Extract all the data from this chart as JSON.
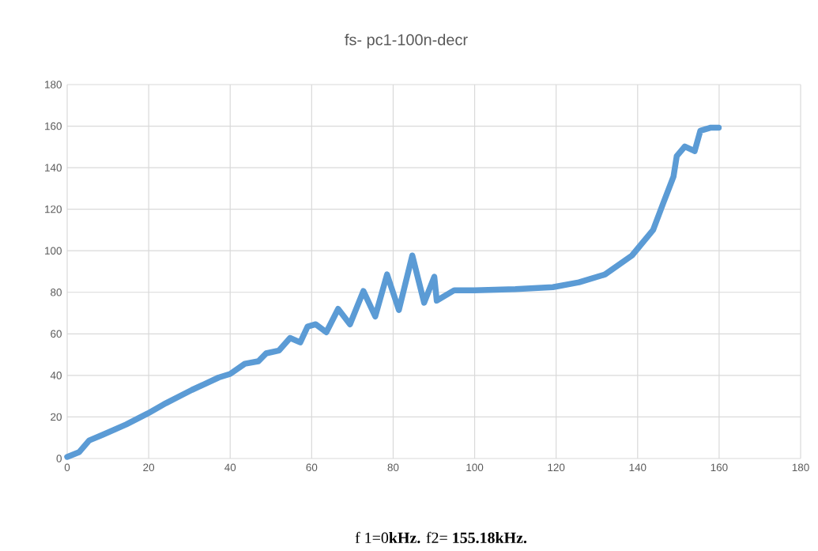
{
  "chart_data": {
    "type": "line",
    "title": "fs- pc1-100n-decr",
    "annotations": [
      "f 1=0**kHz.**    f2= **155.18kHz.**"
    ],
    "x": [
      0,
      2.9,
      5.4,
      8.7,
      14.5,
      19.8,
      24.2,
      30.6,
      37.2,
      40,
      43.6,
      46.9,
      48.8,
      52,
      54.7,
      57.2,
      59,
      61,
      63.6,
      66.5,
      69.4,
      72.7,
      75.6,
      78.5,
      81.4,
      84.7,
      87.6,
      90.1,
      90.7,
      95,
      100,
      110,
      119.2,
      125.6,
      132,
      138.6,
      143.8,
      146.3,
      148.8,
      149.6,
      151.6,
      154,
      155.4,
      158,
      159.9
    ],
    "series": [
      {
        "color": "#5b9bd5",
        "values": [
          0.8,
          3,
          8.7,
          11.4,
          16.4,
          21.7,
          26.6,
          33,
          39,
          40.7,
          45.6,
          46.8,
          50.6,
          52,
          58,
          55.9,
          63.5,
          64.6,
          60.8,
          72,
          64.6,
          80.6,
          68.4,
          88.6,
          71.5,
          97.7,
          75,
          87.5,
          76,
          81,
          81,
          81.5,
          82.5,
          84.8,
          88.6,
          97.7,
          110,
          123,
          135.7,
          145.6,
          150.2,
          148,
          157.8,
          159.3,
          159.3
        ]
      }
    ],
    "xlim": [
      0,
      180
    ],
    "ylim": [
      0,
      180
    ],
    "xticks": [
      0,
      20,
      40,
      60,
      80,
      100,
      120,
      140,
      160,
      180
    ],
    "yticks": [
      0,
      20,
      40,
      60,
      80,
      100,
      120,
      140,
      160,
      180
    ],
    "grid": true,
    "line_style": "solid"
  }
}
